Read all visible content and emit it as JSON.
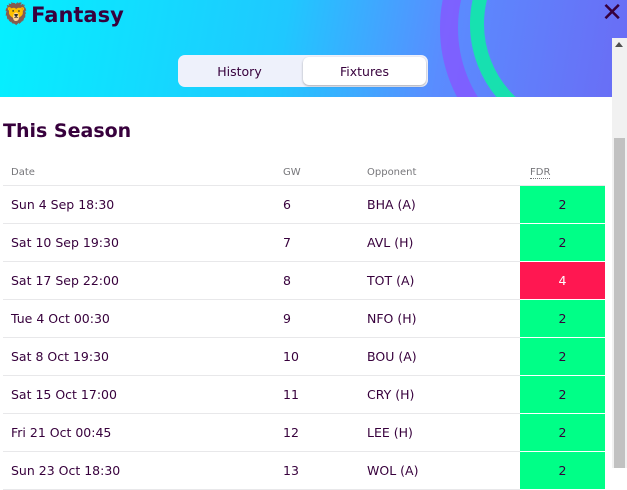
{
  "header": {
    "logo_text": "Fantasy",
    "close_label": "✕"
  },
  "tabs": [
    {
      "label": "History",
      "active": false
    },
    {
      "label": "Fixtures",
      "active": true
    }
  ],
  "section_title": "This Season",
  "table": {
    "headers": [
      "Date",
      "GW",
      "Opponent",
      "FDR"
    ],
    "rows": [
      [
        "Sun 4 Sep 18:30",
        "6",
        "BHA (A)",
        "2"
      ],
      [
        "Sat 10 Sep 19:30",
        "7",
        "AVL (H)",
        "2"
      ],
      [
        "Sat 17 Sep 22:00",
        "8",
        "TOT (A)",
        "4"
      ],
      [
        "Tue 4 Oct 00:30",
        "9",
        "NFO (H)",
        "2"
      ],
      [
        "Sat 8 Oct 19:30",
        "10",
        "BOU (A)",
        "2"
      ],
      [
        "Sat 15 Oct 17:00",
        "11",
        "CRY (H)",
        "2"
      ],
      [
        "Fri 21 Oct 00:45",
        "12",
        "LEE (H)",
        "2"
      ],
      [
        "Sun 23 Oct 18:30",
        "13",
        "WOL (A)",
        "2"
      ]
    ]
  },
  "colors": {
    "fdr_2": "#00ff87",
    "fdr_4": "#ff1751",
    "fdr_4_text": "#ffffff"
  }
}
